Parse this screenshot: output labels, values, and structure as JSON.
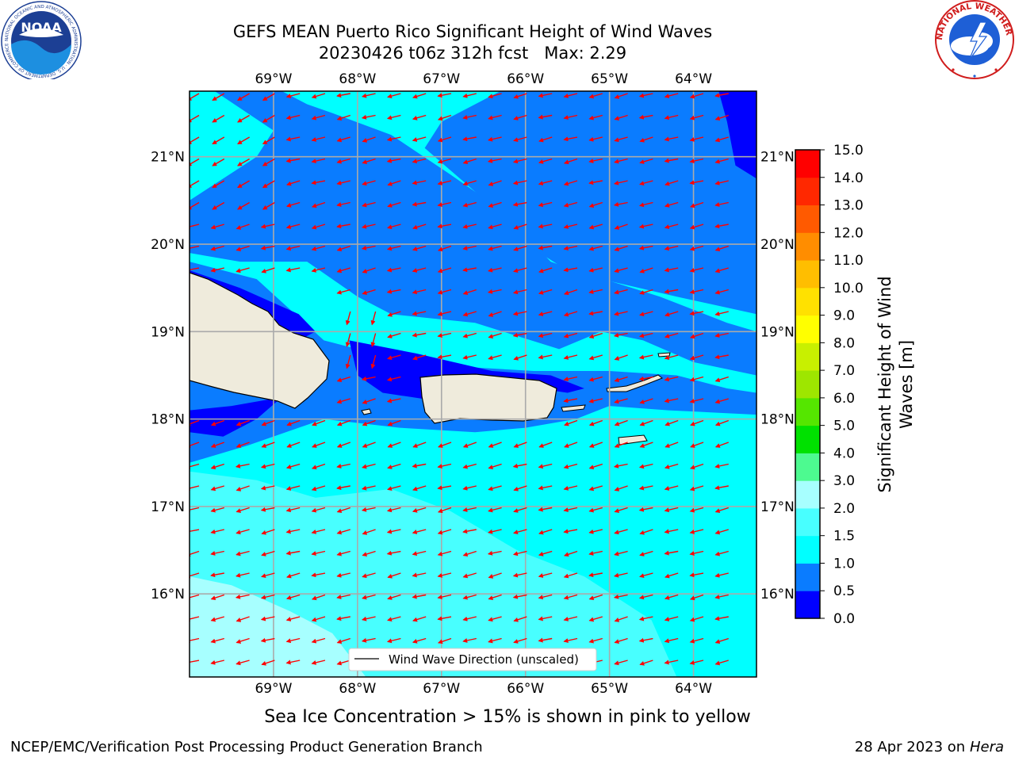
{
  "header": {
    "title_line1": "GEFS MEAN Puerto Rico Significant Height of Wind Waves",
    "title_line2": "20230426 t06z 312h fcst   Max: 2.29"
  },
  "logos": {
    "noaa_text": "NOAA",
    "noaa_ring_text": "NATIONAL OCEANIC AND ATMOSPHERIC ADMINISTRATION · U.S. DEPARTMENT OF COMMERCE",
    "nws_ring_text": "NATIONAL WEATHER SERVICE"
  },
  "legend": {
    "label": "Wind Wave Direction (unscaled)"
  },
  "colorbar": {
    "label_line1": "Significant Height of Wind",
    "label_line2": "Waves [m]",
    "ticks": [
      "0.0",
      "0.5",
      "1.0",
      "1.5",
      "2.0",
      "3.0",
      "4.0",
      "5.0",
      "6.0",
      "7.0",
      "8.0",
      "9.0",
      "10.0",
      "11.0",
      "12.0",
      "13.0",
      "14.0",
      "15.0"
    ],
    "colors": [
      "#0000ff",
      "#0a7cff",
      "#00ffff",
      "#48ffff",
      "#a7ffff",
      "#4dfa90",
      "#00e100",
      "#55e600",
      "#9ee600",
      "#c8f000",
      "#ffff00",
      "#ffe100",
      "#ffbe00",
      "#ff8d00",
      "#ff5a00",
      "#ff2800",
      "#ff0000"
    ]
  },
  "footer": {
    "note": "Sea Ice Concentration > 15% is shown in pink to yellow",
    "credit": "NCEP/EMC/Verification Post Processing Product Generation Branch",
    "date": "28 Apr 2023 on ",
    "machine": "Hera"
  },
  "chart_data": {
    "type": "heatmap",
    "title": "GEFS MEAN Puerto Rico Significant Height of Wind Waves",
    "subtitle": "20230426 t06z 312h fcst   Max: 2.29",
    "max_value": 2.29,
    "units": "m",
    "xlim": [
      -70.0,
      -63.25
    ],
    "ylim": [
      15.05,
      21.75
    ],
    "lon_ticks": [
      -69,
      -68,
      -67,
      -66,
      -65,
      -64
    ],
    "lon_tick_labels": [
      "69°W",
      "68°W",
      "67°W",
      "66°W",
      "65°W",
      "64°W"
    ],
    "lat_ticks": [
      16,
      17,
      18,
      19,
      20,
      21
    ],
    "lat_tick_labels": [
      "16°N",
      "17°N",
      "18°N",
      "19°N",
      "20°N",
      "21°N"
    ],
    "grid": true,
    "legend": "bottom-center",
    "levels": [
      0.0,
      0.5,
      1.0,
      1.5,
      2.0,
      3.0,
      4.0,
      5.0,
      6.0,
      7.0,
      8.0,
      9.0,
      10.0,
      11.0,
      12.0,
      13.0,
      14.0,
      15.0
    ],
    "regions": [
      {
        "level": "0.5-1.0",
        "color": "#0a7cff",
        "points": [
          [
            -69.7,
            21.75
          ],
          [
            -68.9,
            21.75
          ],
          [
            -68.6,
            21.6
          ],
          [
            -68.3,
            21.5
          ],
          [
            -67.6,
            21.25
          ],
          [
            -66.9,
            20.8
          ],
          [
            -66.3,
            20.4
          ],
          [
            -65.7,
            19.8
          ],
          [
            -65.4,
            19.7
          ],
          [
            -64.4,
            19.4
          ],
          [
            -63.6,
            19.1
          ],
          [
            -63.25,
            19.0
          ],
          [
            -63.25,
            18.5
          ],
          [
            -64.0,
            18.65
          ],
          [
            -64.6,
            18.9
          ],
          [
            -65.1,
            19.0
          ],
          [
            -65.6,
            18.8
          ],
          [
            -66.6,
            19.1
          ],
          [
            -67.6,
            19.2
          ],
          [
            -68.0,
            19.4
          ],
          [
            -68.6,
            19.8
          ],
          [
            -69.4,
            19.8
          ],
          [
            -70.0,
            19.9
          ],
          [
            -70.0,
            20.5
          ],
          [
            -69.2,
            21.0
          ],
          [
            -69.0,
            21.3
          ]
        ]
      },
      {
        "level": "0.5-1.0",
        "color": "#0a7cff",
        "points": [
          [
            -66.3,
            21.75
          ],
          [
            -63.25,
            21.75
          ],
          [
            -63.25,
            19.2
          ],
          [
            -64.2,
            19.4
          ],
          [
            -65.1,
            19.6
          ],
          [
            -65.5,
            19.7
          ],
          [
            -66.0,
            20.0
          ],
          [
            -66.6,
            20.6
          ],
          [
            -67.2,
            21.1
          ],
          [
            -67.0,
            21.4
          ]
        ]
      },
      {
        "level": "0.5-1.0",
        "color": "#0a7cff",
        "points": [
          [
            -70.0,
            19.8
          ],
          [
            -69.2,
            19.6
          ],
          [
            -68.4,
            18.9
          ],
          [
            -67.8,
            18.75
          ],
          [
            -66.8,
            18.6
          ],
          [
            -65.9,
            18.55
          ],
          [
            -65.0,
            18.55
          ],
          [
            -64.2,
            18.5
          ],
          [
            -63.6,
            18.35
          ],
          [
            -63.25,
            18.3
          ],
          [
            -63.25,
            18.05
          ],
          [
            -64.3,
            18.1
          ],
          [
            -65.0,
            18.15
          ],
          [
            -65.4,
            18.0
          ],
          [
            -66.0,
            17.9
          ],
          [
            -66.6,
            17.85
          ],
          [
            -67.5,
            17.9
          ],
          [
            -68.4,
            18.0
          ],
          [
            -69.3,
            17.7
          ],
          [
            -70.0,
            17.5
          ]
        ]
      },
      {
        "level": "0.0-0.5",
        "color": "#0000ff",
        "points": [
          [
            -70.0,
            19.7
          ],
          [
            -69.4,
            19.5
          ],
          [
            -68.7,
            19.2
          ],
          [
            -68.5,
            19.0
          ],
          [
            -68.9,
            18.8
          ],
          [
            -69.5,
            19.0
          ],
          [
            -70.0,
            19.2
          ]
        ]
      },
      {
        "level": "0.0-0.5",
        "color": "#0000ff",
        "points": [
          [
            -68.1,
            18.9
          ],
          [
            -67.3,
            18.75
          ],
          [
            -66.4,
            18.55
          ],
          [
            -65.7,
            18.5
          ],
          [
            -65.3,
            18.35
          ],
          [
            -65.5,
            18.3
          ],
          [
            -66.2,
            18.4
          ],
          [
            -67.0,
            18.2
          ],
          [
            -67.7,
            18.3
          ],
          [
            -68.0,
            18.5
          ]
        ]
      },
      {
        "level": "0.0-0.5",
        "color": "#0000ff",
        "points": [
          [
            -70.0,
            18.1
          ],
          [
            -69.5,
            18.15
          ],
          [
            -68.9,
            18.25
          ],
          [
            -69.2,
            18.0
          ],
          [
            -69.6,
            17.8
          ],
          [
            -70.0,
            17.85
          ]
        ]
      },
      {
        "level": "0.0-0.5",
        "color": "#0000ff",
        "points": [
          [
            -63.7,
            21.75
          ],
          [
            -63.25,
            21.75
          ],
          [
            -63.25,
            20.75
          ],
          [
            -63.5,
            20.9
          ],
          [
            -63.6,
            21.4
          ]
        ]
      }
    ],
    "light_regions": [
      {
        "level": "1.5-2.0",
        "color": "#48ffff",
        "points": [
          [
            -70.0,
            17.4
          ],
          [
            -69.2,
            17.3
          ],
          [
            -68.5,
            17.1
          ],
          [
            -67.6,
            17.2
          ],
          [
            -66.9,
            16.95
          ],
          [
            -66.1,
            16.5
          ],
          [
            -65.3,
            16.2
          ],
          [
            -64.5,
            15.7
          ],
          [
            -64.2,
            15.05
          ],
          [
            -70.0,
            15.05
          ]
        ]
      },
      {
        "level": "2.0-3.0",
        "color": "#a7ffff",
        "points": [
          [
            -70.0,
            16.2
          ],
          [
            -69.5,
            16.1
          ],
          [
            -68.8,
            15.8
          ],
          [
            -68.3,
            15.55
          ],
          [
            -67.9,
            15.05
          ],
          [
            -70.0,
            15.05
          ]
        ]
      }
    ],
    "arrow_direction": "westward (east-to-west) over most of the domain, turning toward south-southwest along the southern coasts"
  }
}
